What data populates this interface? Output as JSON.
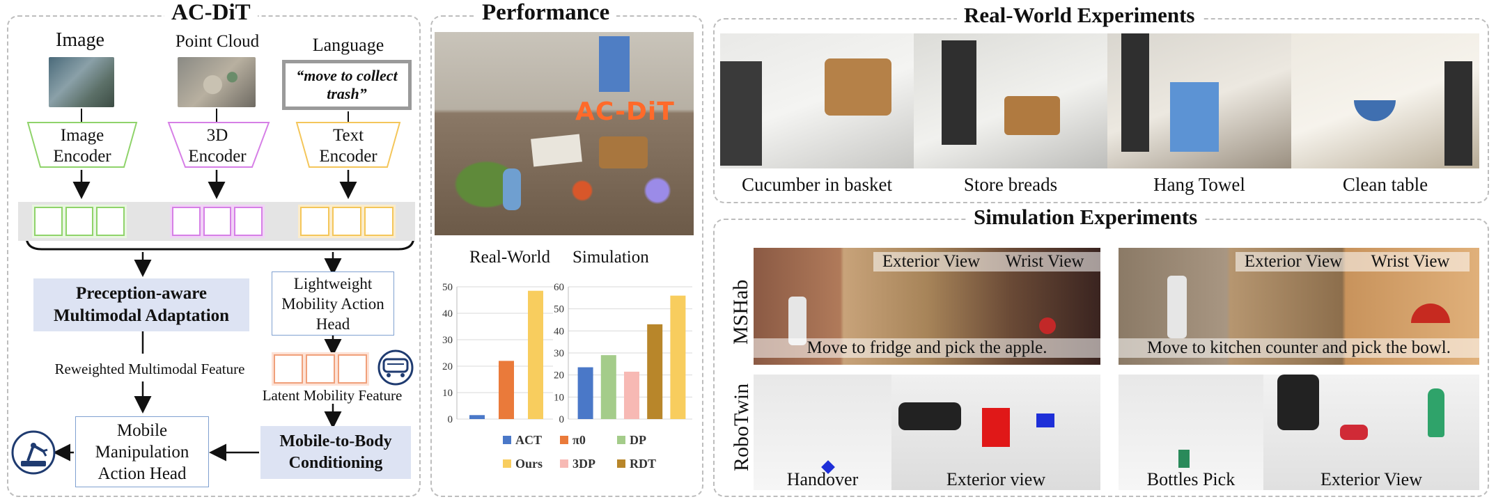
{
  "acdit": {
    "title": "AC-DiT",
    "inputs": {
      "image": "Image",
      "point_cloud": "Point Cloud",
      "language": "Language",
      "language_instruction": "“move to collect trash”"
    },
    "encoders": {
      "image": "Image Encoder",
      "point_cloud": "3D Encoder",
      "text": "Text Encoder"
    },
    "perception_module": "Preception-aware Multimodal Adaptation",
    "mobility_head": "Lightweight Mobility Action Head",
    "reweighted_feature": "Reweighted Multimodal Feature",
    "latent_mobility_feature": "Latent Mobility Feature",
    "manipulation_head": "Mobile Manipulation Action Head",
    "conditioning_module": "Mobile-to-Body Conditioning",
    "colors": {
      "image": "#8fd36a",
      "point_cloud": "#d67fe6",
      "text": "#f4c65a",
      "mobility_token": "#f0a07a",
      "module_fill": "#dde3f3"
    }
  },
  "performance": {
    "title": "Performance",
    "overlay_text": "AC-DiT",
    "chart_titles": {
      "real_world": "Real-World",
      "simulation": "Simulation"
    }
  },
  "chart_data": [
    {
      "type": "bar",
      "title": "Real-World",
      "categories": [
        "ACT",
        "π0",
        "Ours"
      ],
      "values": [
        1.5,
        22,
        48.5
      ],
      "ylim": [
        0,
        50
      ],
      "yticks": [
        0,
        10,
        20,
        30,
        40,
        50
      ],
      "colors": [
        "#4a78c8",
        "#ea7a3a",
        "#f8cd5e"
      ]
    },
    {
      "type": "bar",
      "title": "Simulation",
      "categories": [
        "ACT",
        "DP",
        "3DP",
        "RDT",
        "Ours"
      ],
      "values": [
        23.5,
        29,
        21.5,
        43,
        56
      ],
      "ylim": [
        0,
        60
      ],
      "yticks": [
        0,
        10,
        20,
        30,
        40,
        50,
        60
      ],
      "colors": [
        "#4a78c8",
        "#a4cc8a",
        "#f7b9b4",
        "#b8862a",
        "#f8cd5e"
      ]
    }
  ],
  "legend": [
    {
      "label": "ACT",
      "color": "#4a78c8"
    },
    {
      "label": "π0",
      "color": "#ea7a3a"
    },
    {
      "label": "DP",
      "color": "#a4cc8a"
    },
    {
      "label": "Ours",
      "color": "#f8cd5e"
    },
    {
      "label": "3DP",
      "color": "#f7b9b4"
    },
    {
      "label": "RDT",
      "color": "#b8862a"
    }
  ],
  "real_world": {
    "title": "Real-World Experiments",
    "tasks": [
      "Cucumber in basket",
      "Store breads",
      "Hang Towel",
      "Clean table"
    ]
  },
  "simulation": {
    "title": "Simulation Experiments",
    "mshab": {
      "label": "MSHab",
      "exterior_view": "Exterior View",
      "wrist_view": "Wrist View",
      "task1": "Move to fridge and pick the apple.",
      "task2": "Move to kitchen counter and pick the bowl."
    },
    "robotwin": {
      "label": "RoboTwin",
      "task1": "Handover",
      "view1": "Exterior view",
      "task2": "Bottles Pick",
      "view2": "Exterior View"
    }
  }
}
